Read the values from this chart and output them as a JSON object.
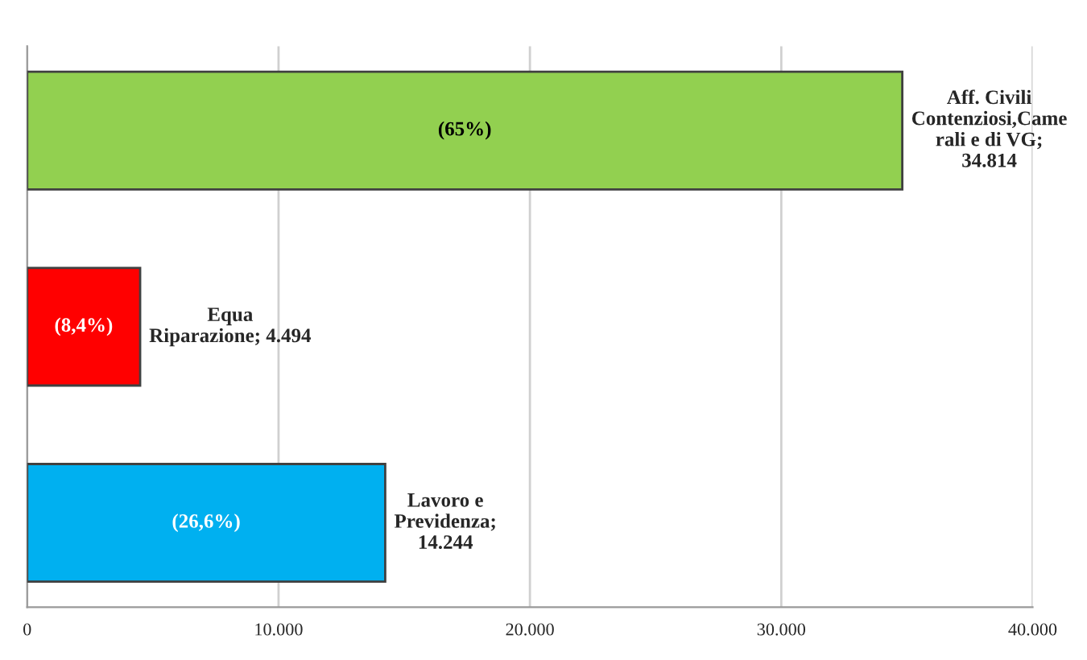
{
  "chart_data": {
    "type": "bar",
    "orientation": "horizontal",
    "categories": [
      null,
      null,
      null
    ],
    "values": [
      34814,
      4494,
      14244
    ],
    "colors": [
      "#92d050",
      "#ff0000",
      "#00b0f0"
    ],
    "value_labels": [
      "Aff. Civili\nContenziosi,Came\nrali e di VG;\n34.814",
      "Equa\nRiparazione; 4.494",
      "Lavoro e\nPrevidenza;\n14.244"
    ],
    "annotations": [
      "(65%)",
      "(8,4%)",
      "(26,6%)"
    ],
    "xlim": [
      0,
      40000
    ],
    "xticks": [
      0,
      {
        "value": 10000,
        "label": "10.000"
      },
      {
        "value": 20000,
        "label": "20.000"
      },
      {
        "value": 30000,
        "label": "30.000"
      },
      {
        "value": 40000,
        "label": "40.000"
      }
    ],
    "grid": "x",
    "legend": false
  }
}
